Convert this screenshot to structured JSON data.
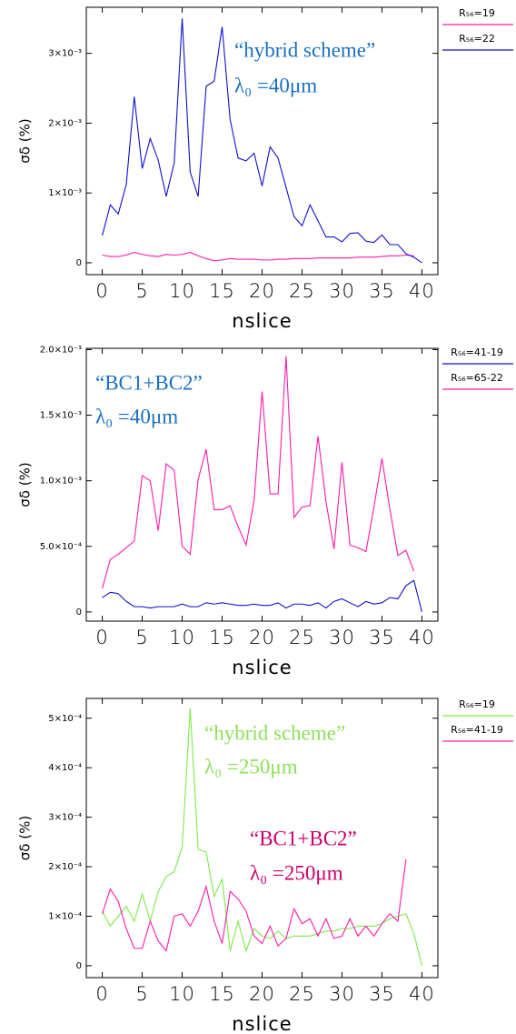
{
  "chart_data": [
    {
      "type": "line",
      "xlabel": "nslice",
      "ylabel": "σδ (%)",
      "x": [
        0,
        1,
        2,
        3,
        4,
        5,
        6,
        7,
        8,
        9,
        10,
        11,
        12,
        13,
        14,
        15,
        16,
        17,
        18,
        19,
        20,
        21,
        22,
        23,
        24,
        25,
        26,
        27,
        28,
        29,
        30,
        31,
        32,
        33,
        34,
        35,
        36,
        37,
        38,
        39,
        40
      ],
      "xlim": [
        -2,
        42
      ],
      "xticks": [
        0,
        5,
        10,
        15,
        20,
        25,
        30,
        35,
        40
      ],
      "ylim": [
        -0.00017,
        0.00366
      ],
      "yticks": [
        {
          "value": 0,
          "label": "0"
        },
        {
          "value": 0.001,
          "label": "1×10⁻³"
        },
        {
          "value": 0.002,
          "label": "2×10⁻³"
        },
        {
          "value": 0.003,
          "label": "3×10⁻³"
        }
      ],
      "series": [
        {
          "name": "R₅₆=19",
          "color": "#ff1aa8",
          "values": [
            0.00011,
            9e-05,
            9e-05,
            0.00011,
            0.00015,
            0.00012,
            0.0001,
            9e-05,
            0.00012,
            0.00011,
            0.00012,
            0.00015,
            0.0001,
            6e-05,
            3e-05,
            4e-05,
            6e-05,
            5e-05,
            5e-05,
            5e-05,
            4e-05,
            4e-05,
            5e-05,
            5e-05,
            6e-05,
            6e-05,
            6e-05,
            7e-05,
            7e-05,
            7e-05,
            7e-05,
            7e-05,
            8e-05,
            8e-05,
            8e-05,
            9e-05,
            0.0001,
            0.0001,
            0.00011,
            0.0001,
            null
          ]
        },
        {
          "name": "R₅₆=22",
          "color": "#1010d0",
          "values": [
            0.00039,
            0.00083,
            0.0007,
            0.00112,
            0.00238,
            0.00135,
            0.00178,
            0.00147,
            0.00095,
            0.00143,
            0.0035,
            0.0013,
            0.00095,
            0.00253,
            0.0026,
            0.00338,
            0.00205,
            0.0015,
            0.00146,
            0.00157,
            0.0011,
            0.00166,
            0.0015,
            0.00108,
            0.00066,
            0.00053,
            0.00083,
            0.0006,
            0.00037,
            0.00037,
            0.0003,
            0.00042,
            0.00043,
            0.00031,
            0.00029,
            0.0004,
            0.00026,
            0.00026,
            0.00013,
            8e-05,
            0.0
          ]
        }
      ],
      "annotations": [
        {
          "text": "“hybrid scheme”",
          "color": "#1a6fc0"
        },
        {
          "text": "λ₀ =40μm",
          "color": "#1a6fc0"
        }
      ]
    },
    {
      "type": "line",
      "xlabel": "nslice",
      "ylabel": "σδ (%)",
      "x": [
        0,
        1,
        2,
        3,
        4,
        5,
        6,
        7,
        8,
        9,
        10,
        11,
        12,
        13,
        14,
        15,
        16,
        17,
        18,
        19,
        20,
        21,
        22,
        23,
        24,
        25,
        26,
        27,
        28,
        29,
        30,
        31,
        32,
        33,
        34,
        35,
        36,
        37,
        38,
        39,
        40
      ],
      "xlim": [
        -2,
        42
      ],
      "xticks": [
        0,
        5,
        10,
        15,
        20,
        25,
        30,
        35,
        40
      ],
      "ylim": [
        -7e-05,
        0.00201
      ],
      "yticks": [
        {
          "value": 0,
          "label": "0"
        },
        {
          "value": 0.0005,
          "label": "5.0×10⁻⁴"
        },
        {
          "value": 0.001,
          "label": "1.0×10⁻³"
        },
        {
          "value": 0.0015,
          "label": "1.5×10⁻³"
        },
        {
          "value": 0.002,
          "label": "2.0×10⁻³"
        }
      ],
      "series": [
        {
          "name": "R₅₆=41-19",
          "color": "#1010d0",
          "values": [
            0.00011,
            0.00015,
            0.00014,
            8e-05,
            4e-05,
            4e-05,
            3e-05,
            4e-05,
            4e-05,
            4e-05,
            6e-05,
            4e-05,
            4e-05,
            7e-05,
            6e-05,
            7e-05,
            6e-05,
            5e-05,
            5e-05,
            6e-05,
            5e-05,
            5e-05,
            7e-05,
            3e-05,
            6e-05,
            6e-05,
            5e-05,
            7e-05,
            3e-05,
            8e-05,
            0.0001,
            7e-05,
            4e-05,
            8e-05,
            6e-05,
            7e-05,
            0.00011,
            0.0001,
            0.0002,
            0.00024,
            0.0
          ]
        },
        {
          "name": "R₅₆=65-22",
          "color": "#ff1aa8",
          "values": [
            0.00018,
            0.0004,
            0.00044,
            0.00049,
            0.00054,
            0.00104,
            0.001,
            0.00062,
            0.00113,
            0.00108,
            0.0005,
            0.00044,
            0.00101,
            0.00124,
            0.00078,
            0.00078,
            0.00081,
            0.00065,
            0.00051,
            0.00085,
            0.00168,
            0.0009,
            0.0009,
            0.00195,
            0.00072,
            0.0008,
            0.00081,
            0.00134,
            0.00084,
            0.00048,
            0.00114,
            0.00051,
            0.00049,
            0.00046,
            0.0008,
            0.00117,
            0.00078,
            0.00043,
            0.00047,
            0.00031,
            null
          ]
        }
      ],
      "annotations": [
        {
          "text": "“BC1+BC2”",
          "color": "#1a6fc0"
        },
        {
          "text": "λ₀ =40μm",
          "color": "#1a6fc0"
        }
      ]
    },
    {
      "type": "line",
      "xlabel": "nslice",
      "ylabel": "σδ (%)",
      "x": [
        0,
        1,
        2,
        3,
        4,
        5,
        6,
        7,
        8,
        9,
        10,
        11,
        12,
        13,
        14,
        15,
        16,
        17,
        18,
        19,
        20,
        21,
        22,
        23,
        24,
        25,
        26,
        27,
        28,
        29,
        30,
        31,
        32,
        33,
        34,
        35,
        36,
        37,
        38,
        39,
        40
      ],
      "xlim": [
        -2,
        42
      ],
      "xticks": [
        0,
        5,
        10,
        15,
        20,
        25,
        30,
        35,
        40
      ],
      "ylim": [
        -2.4e-05,
        0.00054
      ],
      "yticks": [
        {
          "value": 0,
          "label": "0"
        },
        {
          "value": 0.0001,
          "label": "1×10⁻⁴"
        },
        {
          "value": 0.0002,
          "label": "2×10⁻⁴"
        },
        {
          "value": 0.0003,
          "label": "3×10⁻⁴"
        },
        {
          "value": 0.0004,
          "label": "4×10⁻⁴"
        },
        {
          "value": 0.0005,
          "label": "5×10⁻⁴"
        }
      ],
      "series": [
        {
          "name": "R₅₆=19",
          "color": "#7ee84a",
          "values": [
            0.00011,
            8e-05,
            0.0001,
            0.00012,
            9e-05,
            0.000145,
            9e-05,
            0.00015,
            0.00018,
            0.00019,
            0.00024,
            0.00052,
            0.000235,
            0.00023,
            0.00014,
            0.000175,
            3e-05,
            9e-05,
            3e-05,
            7.5e-05,
            6e-05,
            5.5e-05,
            7e-05,
            5.5e-05,
            6e-05,
            6e-05,
            6e-05,
            6.5e-05,
            7e-05,
            7e-05,
            7.5e-05,
            7.5e-05,
            8e-05,
            8e-05,
            8e-05,
            8.5e-05,
            9.5e-05,
            0.0001,
            0.000105,
            6.5e-05,
            0.0
          ]
        },
        {
          "name": "R₅₆=41-19",
          "color": "#ff1aa8",
          "values": [
            0.000105,
            0.000155,
            0.00013,
            7.5e-05,
            3.5e-05,
            3.5e-05,
            9e-05,
            5e-05,
            3e-05,
            0.0001,
            0.000105,
            8e-05,
            0.00011,
            0.00016,
            9e-05,
            4.5e-05,
            0.00015,
            0.000135,
            0.00011,
            6e-05,
            4.5e-05,
            8e-05,
            4e-05,
            5.5e-05,
            0.000115,
            8.5e-05,
            9.5e-05,
            6e-05,
            9.5e-05,
            5.5e-05,
            6e-05,
            9.5e-05,
            6e-05,
            8e-05,
            6e-05,
            8.5e-05,
            0.000105,
            9e-05,
            0.000215,
            null,
            null
          ]
        }
      ],
      "annotations": [
        {
          "text": "“hybrid scheme”",
          "color": "#8ee05a"
        },
        {
          "text": "λ₀ =250μm",
          "color": "#8ee05a"
        },
        {
          "text": "“BC1+BC2”",
          "color": "#c8006a"
        },
        {
          "text": "λ₀ =250μm",
          "color": "#c8006a"
        }
      ]
    }
  ]
}
